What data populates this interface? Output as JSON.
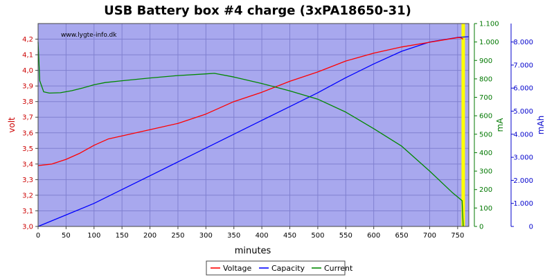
{
  "chart_data": {
    "type": "line",
    "title": "USB Battery box #4 charge (3xPA18650-31)",
    "watermark": "www.lygte-info.dk",
    "xlabel": "minutes",
    "xlim": [
      0,
      770
    ],
    "x_ticks": [
      0,
      50,
      100,
      150,
      200,
      250,
      300,
      350,
      400,
      450,
      500,
      550,
      600,
      650,
      700,
      750
    ],
    "axes": {
      "volt": {
        "label": "volt",
        "ylim": [
          3.0,
          4.3
        ],
        "ticks": [
          3.0,
          3.1,
          3.2,
          3.3,
          3.4,
          3.5,
          3.6,
          3.7,
          3.8,
          3.9,
          4.0,
          4.1,
          4.2
        ],
        "tick_labels": [
          "3,0",
          "3,1",
          "3,2",
          "3,3",
          "3,4",
          "3,5",
          "3,6",
          "3,7",
          "3,8",
          "3,9",
          "4,0",
          "4,1",
          "4,2"
        ],
        "color": "#cc0000"
      },
      "mA": {
        "label": "mA",
        "ylim": [
          0,
          1100
        ],
        "ticks": [
          0,
          100,
          200,
          300,
          400,
          500,
          600,
          700,
          800,
          900,
          1000,
          1100
        ],
        "tick_labels": [
          "0",
          "100",
          "200",
          "300",
          "400",
          "500",
          "600",
          "700",
          "800",
          "900",
          "1.000",
          "1.100"
        ],
        "color": "#007700"
      },
      "mAh": {
        "label": "mAh",
        "ylim": [
          0,
          8800
        ],
        "ticks": [
          0,
          1000,
          2000,
          3000,
          4000,
          5000,
          6000,
          7000,
          8000
        ],
        "tick_labels": [
          "0",
          "1.000",
          "2.000",
          "3.000",
          "4.000",
          "5.000",
          "6.000",
          "7.000",
          "8.000"
        ],
        "color": "#0000cc"
      }
    },
    "series": [
      {
        "name": "Voltage",
        "axis": "volt",
        "color": "#ff0000",
        "x": [
          0,
          25,
          50,
          75,
          100,
          125,
          150,
          200,
          250,
          300,
          350,
          400,
          450,
          500,
          550,
          600,
          650,
          700,
          750,
          755,
          760
        ],
        "values": [
          3.39,
          3.4,
          3.43,
          3.47,
          3.52,
          3.56,
          3.58,
          3.62,
          3.66,
          3.72,
          3.8,
          3.86,
          3.93,
          3.99,
          4.06,
          4.11,
          4.15,
          4.18,
          4.21,
          4.21,
          4.2
        ]
      },
      {
        "name": "Capacity",
        "axis": "mAh",
        "color": "#0000ff",
        "x": [
          0,
          50,
          100,
          150,
          200,
          250,
          300,
          350,
          400,
          450,
          500,
          550,
          600,
          650,
          700,
          750,
          770
        ],
        "values": [
          0,
          500,
          1000,
          1600,
          2200,
          2800,
          3400,
          4000,
          4600,
          5200,
          5800,
          6450,
          7050,
          7600,
          8000,
          8200,
          8230
        ]
      },
      {
        "name": "Current",
        "axis": "mA",
        "color": "#008800",
        "x": [
          0,
          3,
          10,
          20,
          40,
          60,
          80,
          100,
          120,
          150,
          200,
          250,
          300,
          315,
          350,
          400,
          450,
          500,
          550,
          600,
          650,
          700,
          740,
          758,
          760
        ],
        "values": [
          1000,
          790,
          730,
          723,
          725,
          736,
          751,
          768,
          780,
          790,
          805,
          818,
          827,
          830,
          810,
          775,
          735,
          690,
          620,
          530,
          435,
          300,
          185,
          140,
          0
        ]
      }
    ],
    "marker": {
      "x": 760,
      "color": "#ffff00"
    },
    "legend": {
      "position": "bottom-center",
      "entries": [
        "Voltage",
        "Capacity",
        "Current"
      ]
    },
    "grid": true,
    "plot_background": "#a8a8ee",
    "grid_color": "#8080d0"
  }
}
